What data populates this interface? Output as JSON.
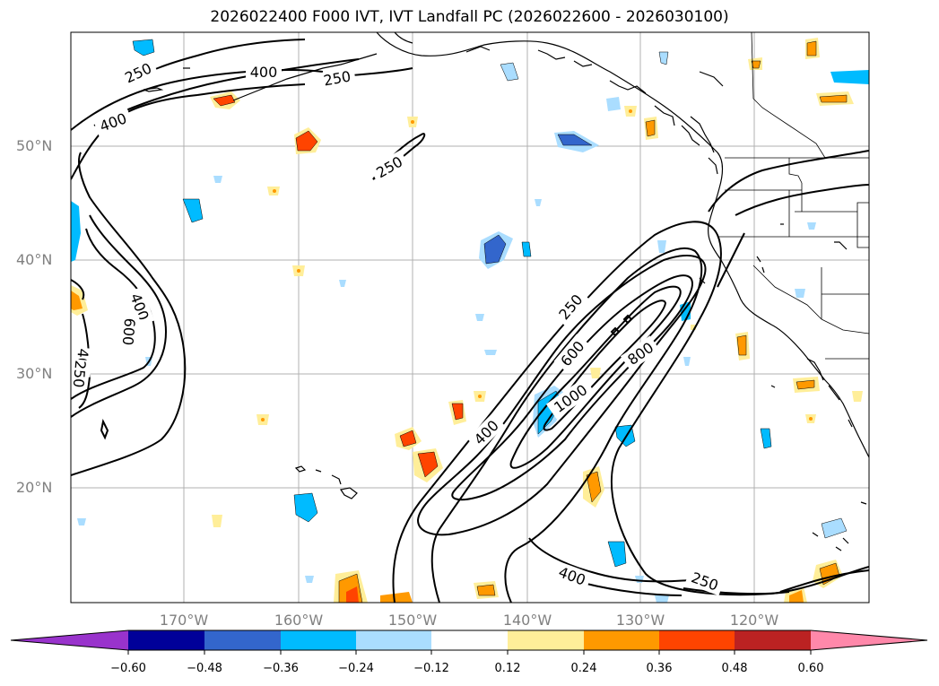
{
  "title": "2026022400 F000 IVT, IVT Landfall PC (2026022600 - 2026030100)",
  "lat_labels": [
    "50°N",
    "40°N",
    "30°N",
    "20°N"
  ],
  "lon_labels": [
    "170°W",
    "160°W",
    "150°W",
    "140°W",
    "130°W",
    "120°W"
  ],
  "contour_labels": {
    "c250_top_left": "250",
    "c400_top": "400",
    "c250_top_mid": "250",
    "c400_left_top": "400",
    "c250_mid": "250",
    "c400_left": "400",
    "c600_left": "600",
    "c400_left_low": "400",
    "c250_left_low": "250",
    "c250_ar": "250",
    "c600_ar": "600",
    "c800_ar": "800",
    "c1000_ar": "1000",
    "c400_ar": "400",
    "c400_bottom": "400",
    "c250_bottom": "250"
  },
  "colorbar": {
    "ticks": [
      "−0.60",
      "−0.48",
      "−0.36",
      "−0.24",
      "−0.12",
      "0.12",
      "0.24",
      "0.36",
      "0.48",
      "0.60"
    ],
    "colors": [
      "#9933cc",
      "#000099",
      "#3366cc",
      "#00bbff",
      "#aaddff",
      "#ffffff",
      "#ffee99",
      "#ff9900",
      "#ff4400",
      "#bb2222",
      "#ff88aa"
    ]
  }
}
